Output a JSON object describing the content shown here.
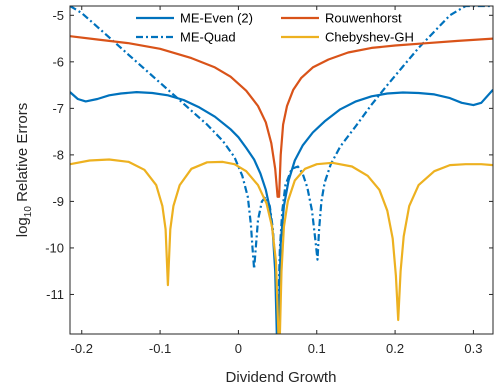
{
  "chart_data": {
    "type": "line",
    "xlabel": "Dividend Growth",
    "ylabel": {
      "main": "log",
      "sub": "10",
      "rest": " Relative Errors"
    },
    "xlim": [
      -0.215,
      0.325
    ],
    "ylim": [
      -11.85,
      -4.8
    ],
    "xticks": [
      -0.2,
      -0.1,
      0,
      0.1,
      0.2,
      0.3
    ],
    "xtick_labels": [
      "-0.2",
      "-0.1",
      "0",
      "0.1",
      "0.2",
      "0.3"
    ],
    "yticks": [
      -11,
      -10,
      -9,
      -8,
      -7,
      -6,
      -5
    ],
    "ytick_labels": [
      "-11",
      "-10",
      "-9",
      "-8",
      "-7",
      "-6",
      "-5"
    ],
    "grid": false,
    "legend_position": "top",
    "series": [
      {
        "name": "ME-Even (2)",
        "color": "#0072BD",
        "dash": "solid",
        "x": [
          -0.215,
          -0.205,
          -0.195,
          -0.18,
          -0.165,
          -0.15,
          -0.13,
          -0.11,
          -0.09,
          -0.07,
          -0.05,
          -0.03,
          -0.01,
          0.0,
          0.01,
          0.02,
          0.028,
          0.035,
          0.04,
          0.044,
          0.047,
          0.049,
          0.051,
          0.054,
          0.058,
          0.064,
          0.072,
          0.082,
          0.095,
          0.11,
          0.13,
          0.15,
          0.17,
          0.19,
          0.21,
          0.23,
          0.25,
          0.27,
          0.285,
          0.3,
          0.31,
          0.325
        ],
        "values": [
          -6.65,
          -6.8,
          -6.85,
          -6.8,
          -6.72,
          -6.68,
          -6.65,
          -6.67,
          -6.72,
          -6.82,
          -6.98,
          -7.18,
          -7.45,
          -7.62,
          -7.85,
          -8.1,
          -8.4,
          -8.75,
          -9.15,
          -9.7,
          -10.5,
          -11.85,
          -11.85,
          -9.9,
          -9.1,
          -8.55,
          -8.12,
          -7.8,
          -7.52,
          -7.28,
          -7.02,
          -6.85,
          -6.74,
          -6.68,
          -6.66,
          -6.67,
          -6.7,
          -6.78,
          -6.88,
          -6.93,
          -6.88,
          -6.6
        ]
      },
      {
        "name": "ME-Quad",
        "color": "#0072BD",
        "dash": "dashdot",
        "x": [
          -0.215,
          -0.2,
          -0.18,
          -0.16,
          -0.14,
          -0.12,
          -0.1,
          -0.08,
          -0.06,
          -0.04,
          -0.02,
          -0.005,
          0.005,
          0.012,
          0.016,
          0.018,
          0.02,
          0.025,
          0.03,
          0.035,
          0.04,
          0.044,
          0.047,
          0.049,
          0.051,
          0.053,
          0.056,
          0.06,
          0.068,
          0.076,
          0.082,
          0.088,
          0.094,
          0.098,
          0.101,
          0.103,
          0.106,
          0.11,
          0.118,
          0.13,
          0.15,
          0.17,
          0.19,
          0.21,
          0.23,
          0.25,
          0.27,
          0.29,
          0.31,
          0.325
        ],
        "values": [
          -4.8,
          -4.95,
          -5.25,
          -5.55,
          -5.85,
          -6.15,
          -6.45,
          -6.75,
          -7.05,
          -7.35,
          -7.7,
          -8.05,
          -8.45,
          -8.9,
          -9.5,
          -10.0,
          -10.45,
          -9.4,
          -9.0,
          -8.9,
          -9.1,
          -9.6,
          -10.3,
          -11.2,
          -11.2,
          -10.0,
          -9.2,
          -8.65,
          -8.3,
          -8.25,
          -8.4,
          -8.7,
          -9.2,
          -9.8,
          -10.25,
          -9.6,
          -9.0,
          -8.6,
          -8.2,
          -7.82,
          -7.38,
          -6.92,
          -6.5,
          -6.1,
          -5.7,
          -5.35,
          -5.0,
          -4.8,
          -4.8,
          -4.8
        ]
      },
      {
        "name": "Rouwenhorst",
        "color": "#D95319",
        "dash": "solid",
        "x": [
          -0.215,
          -0.18,
          -0.14,
          -0.1,
          -0.06,
          -0.03,
          -0.01,
          0.01,
          0.025,
          0.035,
          0.042,
          0.047,
          0.05,
          0.052,
          0.054,
          0.057,
          0.062,
          0.07,
          0.08,
          0.095,
          0.115,
          0.14,
          0.17,
          0.2,
          0.24,
          0.28,
          0.325
        ],
        "values": [
          -5.45,
          -5.52,
          -5.6,
          -5.72,
          -5.92,
          -6.12,
          -6.32,
          -6.62,
          -6.95,
          -7.3,
          -7.75,
          -8.3,
          -8.9,
          -8.9,
          -8.0,
          -7.35,
          -6.95,
          -6.6,
          -6.35,
          -6.12,
          -5.95,
          -5.8,
          -5.7,
          -5.65,
          -5.6,
          -5.55,
          -5.5
        ]
      },
      {
        "name": "Chebyshev-GH",
        "color": "#EDB120",
        "dash": "solid",
        "x": [
          -0.215,
          -0.19,
          -0.165,
          -0.14,
          -0.12,
          -0.105,
          -0.097,
          -0.093,
          -0.09,
          -0.087,
          -0.083,
          -0.075,
          -0.06,
          -0.04,
          -0.02,
          -0.005,
          0.01,
          0.025,
          0.036,
          0.043,
          0.048,
          0.051,
          0.053,
          0.055,
          0.058,
          0.063,
          0.072,
          0.085,
          0.1,
          0.12,
          0.145,
          0.165,
          0.18,
          0.19,
          0.197,
          0.201,
          0.204,
          0.207,
          0.211,
          0.218,
          0.23,
          0.25,
          0.27,
          0.29,
          0.31,
          0.325
        ],
        "values": [
          -8.2,
          -8.12,
          -8.1,
          -8.15,
          -8.32,
          -8.65,
          -9.1,
          -9.6,
          -10.8,
          -9.6,
          -9.1,
          -8.65,
          -8.3,
          -8.16,
          -8.15,
          -8.2,
          -8.35,
          -8.65,
          -9.05,
          -9.55,
          -10.3,
          -11.85,
          -11.85,
          -10.5,
          -9.55,
          -9.0,
          -8.55,
          -8.3,
          -8.2,
          -8.17,
          -8.25,
          -8.45,
          -8.75,
          -9.2,
          -9.8,
          -10.6,
          -11.55,
          -10.5,
          -9.75,
          -9.1,
          -8.65,
          -8.35,
          -8.22,
          -8.2,
          -8.2,
          -8.22
        ]
      }
    ]
  }
}
